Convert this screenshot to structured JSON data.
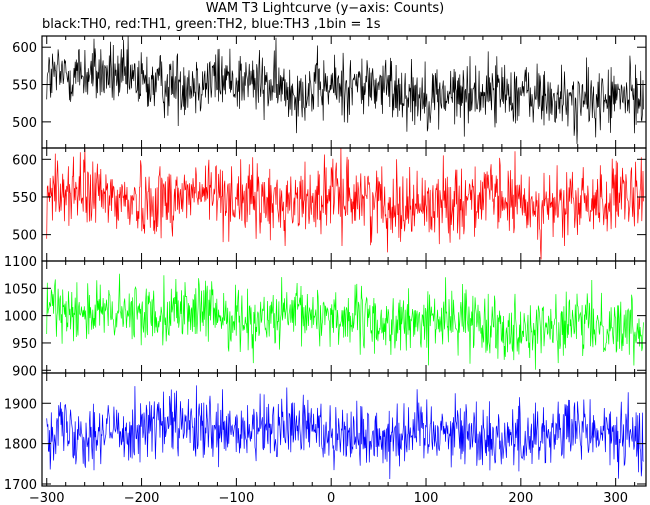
{
  "chart_data": {
    "type": "line",
    "title": "WAM T3 Lightcurve (y−axis: Counts)",
    "subtitle": "black:TH0, red:TH1, green:TH2, blue:TH3 ,1bin = 1s",
    "xlim": [
      -305,
      332
    ],
    "xticks": [
      -300,
      -200,
      -100,
      0,
      100,
      200,
      300
    ],
    "xtick_labels": [
      "−300",
      "−200",
      "−100",
      "0",
      "100",
      "200",
      "300"
    ],
    "panels": [
      {
        "name": "TH0",
        "color": "#000000",
        "ylim": [
          465,
          615
        ],
        "yticks": [
          500,
          550,
          600
        ],
        "ytick_labels": [
          "500",
          "550",
          "600"
        ],
        "mean_start": 562,
        "mean_end": 528,
        "noise": 22
      },
      {
        "name": "TH1",
        "color": "#ff0000",
        "ylim": [
          465,
          615
        ],
        "yticks": [
          500,
          550,
          600
        ],
        "ytick_labels": [
          "500",
          "550",
          "600"
        ],
        "mean_start": 552,
        "mean_end": 540,
        "noise": 24
      },
      {
        "name": "TH2",
        "color": "#00ff00",
        "ylim": [
          895,
          1100
        ],
        "yticks": [
          900,
          950,
          1000,
          1050,
          1100
        ],
        "ytick_labels": [
          "900",
          "950",
          "1000",
          "1050",
          "1100"
        ],
        "mean_start": 1012,
        "mean_end": 975,
        "noise": 28
      },
      {
        "name": "TH3",
        "color": "#0000ff",
        "ylim": [
          1695,
          1975
        ],
        "yticks": [
          1700,
          1800,
          1900
        ],
        "ytick_labels": [
          "1700",
          "1800",
          "1900"
        ],
        "mean_start": 1840,
        "mean_end": 1820,
        "noise": 42
      }
    ]
  }
}
